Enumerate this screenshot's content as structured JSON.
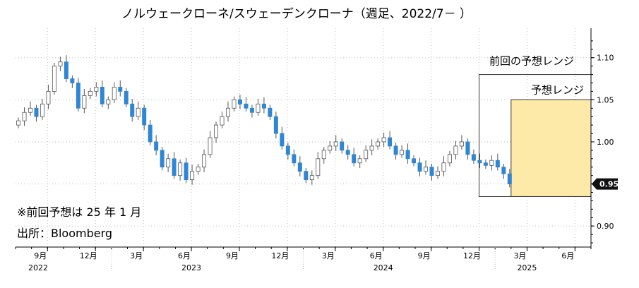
{
  "chart_data": {
    "type": "candlestick",
    "title": "ノルウェークローネ/スウェーデンクローナ（週足、2022/7－ ）",
    "y_axis": {
      "position": "right",
      "range": [
        0.875,
        1.135
      ],
      "ticks": [
        0.9,
        0.95,
        1.0,
        1.05,
        1.1
      ],
      "tick_labels": [
        "0.90",
        "0.95",
        "1.00",
        "1.05",
        "1.10"
      ]
    },
    "x_axis": {
      "tick_labels": [
        "9月",
        "12月",
        "3月",
        "6月",
        "9月",
        "12月",
        "3月",
        "6月",
        "9月",
        "12月",
        "3月",
        "6月"
      ],
      "tick_dates": [
        "2022-09",
        "2022-12",
        "2023-03",
        "2023-06",
        "2023-09",
        "2023-12",
        "2024-03",
        "2024-06",
        "2024-09",
        "2024-12",
        "2025-03",
        "2025-06"
      ],
      "year_labels": [
        "2022",
        "2023",
        "2024",
        "2025"
      ],
      "range": [
        "2022-07",
        "2025-07"
      ]
    },
    "last_value_label": "0.95",
    "up_color": "#ffffff",
    "down_color": "#2e86d4",
    "grid": "dotted",
    "close_series_weekly": [
      1.025,
      1.035,
      1.04,
      1.03,
      1.045,
      1.06,
      1.09,
      1.095,
      1.075,
      1.07,
      1.04,
      1.055,
      1.06,
      1.065,
      1.045,
      1.05,
      1.065,
      1.06,
      1.045,
      1.03,
      1.04,
      1.02,
      1.0,
      0.99,
      0.97,
      0.98,
      0.96,
      0.975,
      0.955,
      0.965,
      0.97,
      0.985,
      1.005,
      1.02,
      1.03,
      1.04,
      1.05,
      1.045,
      1.04,
      1.035,
      1.045,
      1.04,
      1.03,
      1.01,
      0.995,
      0.985,
      0.975,
      0.965,
      0.955,
      0.96,
      0.98,
      0.99,
      0.995,
      1.0,
      0.99,
      0.985,
      0.975,
      0.98,
      0.99,
      0.995,
      1.0,
      1.005,
      0.995,
      0.985,
      0.99,
      0.98,
      0.975,
      0.965,
      0.97,
      0.96,
      0.965,
      0.975,
      0.985,
      0.995,
      1.0,
      0.985,
      0.978,
      0.975,
      0.972,
      0.978,
      0.97,
      0.962,
      0.95
    ],
    "ranges": [
      {
        "name": "前回の予想レンジ",
        "start": "2024-12",
        "end": "2025-07",
        "low": 0.935,
        "high": 1.08
      },
      {
        "name": "予想レンジ",
        "start": "2025-02",
        "end": "2025-07",
        "low": 0.935,
        "high": 1.05
      }
    ]
  },
  "notes": [
    "※前回予想は 25 年 1 月",
    "出所：Bloomberg"
  ]
}
